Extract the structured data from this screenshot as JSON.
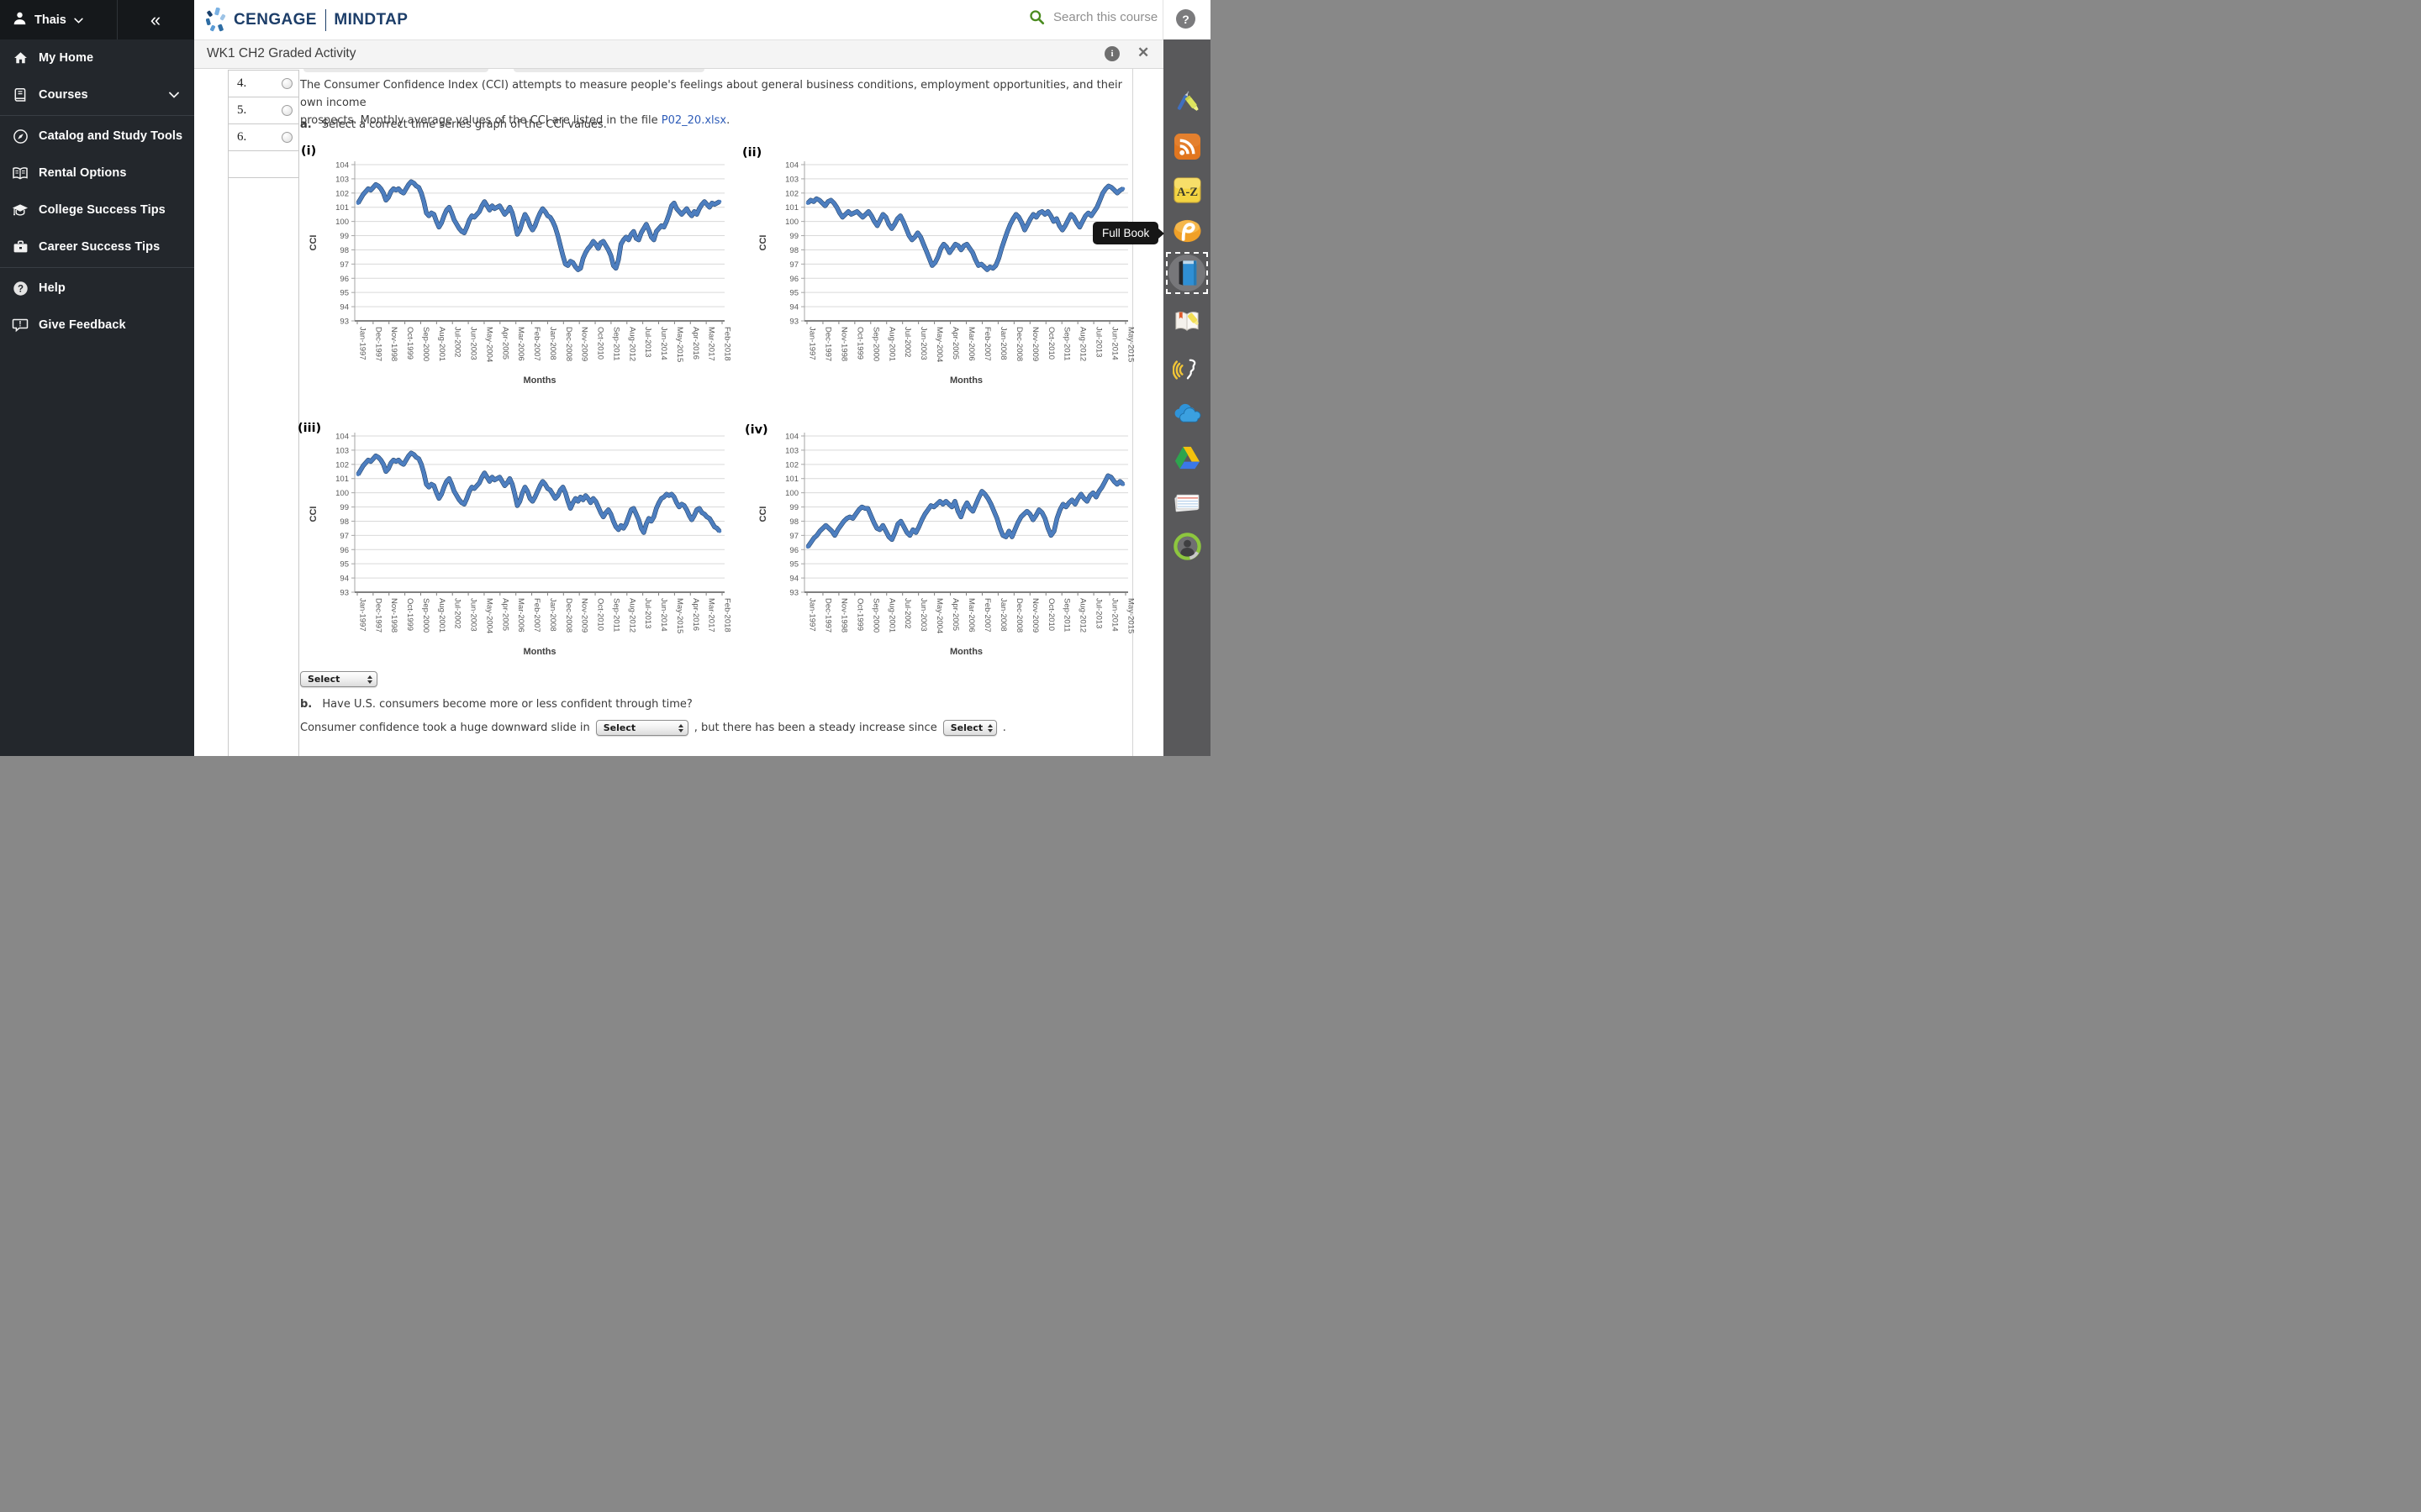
{
  "colors": {
    "brand_navy": "#1d3e69",
    "search_green": "#4a8b1f",
    "link_blue": "#2e5cb8",
    "series": "#4d7ebf",
    "sidebar_bg": "#23272c",
    "rail_bg": "#59595b",
    "grid": "#d9d9d9"
  },
  "sidebar": {
    "user": "Thais",
    "collapse_glyph": "«",
    "groups": [
      [
        {
          "icon": "home-icon",
          "label": "My Home"
        },
        {
          "icon": "courses-icon",
          "label": "Courses",
          "chevron": true
        }
      ],
      [
        {
          "icon": "catalog-icon",
          "label": "Catalog and Study Tools"
        },
        {
          "icon": "rental-icon",
          "label": "Rental Options"
        },
        {
          "icon": "college-icon",
          "label": "College Success Tips"
        },
        {
          "icon": "career-icon",
          "label": "Career Success Tips"
        }
      ],
      [
        {
          "icon": "help-icon",
          "label": "Help"
        },
        {
          "icon": "feedback-icon",
          "label": "Give Feedback"
        }
      ]
    ]
  },
  "header": {
    "brand": "CENGAGE",
    "product": "MINDTAP",
    "search_placeholder": "Search this course",
    "help_glyph": "?"
  },
  "activity": {
    "title": "WK1 CH2 Graded Activity",
    "info_glyph": "i",
    "close_glyph": "✕"
  },
  "question_list": {
    "items": [
      "4.",
      "5.",
      "6."
    ]
  },
  "question": {
    "intro_line1": "The Consumer Confidence Index (CCI) attempts to measure people's feelings about general business conditions, employment opportunities, and their own income",
    "intro_line2_pre": "prospects. Monthly average values of the CCI are listed in the file ",
    "intro_link": "P02_20.xlsx",
    "intro_post": ".",
    "part_a_label": "a.",
    "part_a_text": "Select a correct time series graph of the CCI values.",
    "part_b_label": "b.",
    "part_b_text": "Have U.S. consumers become more or less confident through time?",
    "fill_pre": "Consumer confidence took a huge downward slide in",
    "fill_mid": ", but there has been a steady increase since",
    "fill_end": ".",
    "selects": {
      "a": "Select",
      "b1": "Select",
      "b2": "Select"
    }
  },
  "tooltip": {
    "text": "Full Book"
  },
  "right_rail": {
    "icons": [
      "pen-highlighter-icon",
      "rss-icon",
      "az-icon",
      "pronunciation-icon",
      "full-book-icon",
      "book-highlighter-icon",
      "speech-icon",
      "cloud-icon",
      "google-drive-icon",
      "flashcards-icon",
      "profile-icon"
    ],
    "highlighted": "full-book-icon"
  },
  "chart_data": [
    {
      "id": "i",
      "label": "(i)",
      "type": "line",
      "ylabel": "CCI",
      "xlabel": "Months",
      "ylim": [
        93,
        104
      ],
      "grid": true,
      "legend": "none",
      "x_tick_labels": [
        "Jan-1997",
        "Dec-1997",
        "Nov-1998",
        "Oct-1999",
        "Sep-2000",
        "Aug-2001",
        "Jul-2002",
        "Jun-2003",
        "May-2004",
        "Apr-2005",
        "Mar-2006",
        "Feb-2007",
        "Jan-2008",
        "Dec-2008",
        "Nov-2009",
        "Oct-2010",
        "Sep-2011",
        "Aug-2012",
        "Jul-2013",
        "Jun-2014",
        "May-2015",
        "Apr-2016",
        "Mar-2017",
        "Feb-2018"
      ],
      "values": [
        101.3,
        101.6,
        101.9,
        102.1,
        102.3,
        102.2,
        102.4,
        102.6,
        102.5,
        102.3,
        102.0,
        101.5,
        101.7,
        102.1,
        102.3,
        102.2,
        102.3,
        102.1,
        102.0,
        102.3,
        102.6,
        102.8,
        102.7,
        102.5,
        102.4,
        102.0,
        101.4,
        100.6,
        100.4,
        100.6,
        100.5,
        100.0,
        99.6,
        99.9,
        100.4,
        100.8,
        101.0,
        100.6,
        100.1,
        99.8,
        99.5,
        99.3,
        99.2,
        99.6,
        100.1,
        100.4,
        100.3,
        100.5,
        100.7,
        101.1,
        101.4,
        101.1,
        100.8,
        101.1,
        100.9,
        101.0,
        101.1,
        100.8,
        100.5,
        100.7,
        101.0,
        100.6,
        99.9,
        99.1,
        99.4,
        100.0,
        100.5,
        100.2,
        99.7,
        99.4,
        99.7,
        100.2,
        100.6,
        100.9,
        100.7,
        100.4,
        100.3,
        100.0,
        99.6,
        99.0,
        98.3,
        97.6,
        97.0,
        96.9,
        97.2,
        97.1,
        96.8,
        96.6,
        96.7,
        97.4,
        97.8,
        98.1,
        98.3,
        98.6,
        98.4,
        98.1,
        98.5,
        98.6,
        98.3,
        98.0,
        97.6,
        96.9,
        96.7,
        97.3,
        98.4,
        98.7,
        98.9,
        98.7,
        99.1,
        99.3,
        98.8,
        98.7,
        99.2,
        99.5,
        99.8,
        99.4,
        98.9,
        98.7,
        99.3,
        99.5,
        99.7,
        99.6,
        100.0,
        100.5,
        101.1,
        101.3,
        100.9,
        100.7,
        100.5,
        100.7,
        100.9,
        100.6,
        100.4,
        100.7,
        100.5,
        100.9,
        101.2,
        101.4,
        101.2,
        101.0,
        101.3,
        101.2,
        101.3,
        101.4
      ]
    },
    {
      "id": "ii",
      "label": "(ii)",
      "type": "line",
      "ylabel": "CCI",
      "xlabel": "Months",
      "ylim": [
        93,
        104
      ],
      "grid": true,
      "legend": "none",
      "x_tick_labels": [
        "Jan-1997",
        "Dec-1997",
        "Nov-1998",
        "Oct-1999",
        "Sep-2000",
        "Aug-2001",
        "Jul-2002",
        "Jun-2003",
        "May-2004",
        "Apr-2005",
        "Mar-2006",
        "Feb-2007",
        "Jan-2008",
        "Dec-2008",
        "Nov-2009",
        "Oct-2010",
        "Sep-2011",
        "Aug-2012",
        "Jul-2013",
        "Jun-2014",
        "May-2015"
      ],
      "values": [
        101.3,
        101.5,
        101.4,
        101.6,
        101.5,
        101.3,
        101.1,
        101.4,
        101.5,
        101.3,
        101.0,
        100.6,
        100.3,
        100.5,
        100.7,
        100.5,
        100.6,
        100.7,
        100.5,
        100.3,
        100.5,
        100.7,
        100.4,
        100.0,
        99.7,
        100.1,
        100.5,
        100.3,
        99.8,
        99.5,
        99.8,
        100.2,
        100.4,
        100.0,
        99.5,
        99.0,
        98.7,
        98.9,
        99.2,
        98.9,
        98.4,
        97.9,
        97.4,
        96.9,
        97.1,
        97.5,
        98.1,
        98.4,
        98.2,
        97.8,
        98.1,
        98.4,
        98.3,
        98.0,
        98.3,
        98.4,
        98.1,
        97.8,
        97.3,
        96.9,
        97.0,
        96.8,
        96.6,
        96.8,
        96.7,
        96.9,
        97.4,
        98.1,
        98.7,
        99.3,
        99.8,
        100.2,
        100.5,
        100.3,
        99.9,
        99.4,
        99.8,
        100.2,
        100.5,
        100.3,
        100.6,
        100.7,
        100.5,
        100.7,
        100.4,
        100.0,
        100.2,
        99.7,
        99.4,
        99.7,
        100.1,
        100.5,
        100.3,
        99.9,
        99.6,
        100.0,
        100.4,
        100.6,
        100.4,
        100.7,
        101.0,
        101.5,
        102.0,
        102.3,
        102.5,
        102.4,
        102.2,
        102.0,
        102.2,
        102.3
      ]
    },
    {
      "id": "iii",
      "label": "(iii)",
      "type": "line",
      "ylabel": "CCI",
      "xlabel": "Months",
      "ylim": [
        93,
        104
      ],
      "grid": true,
      "legend": "none",
      "x_tick_labels": [
        "Jan-1997",
        "Dec-1997",
        "Nov-1998",
        "Oct-1999",
        "Sep-2000",
        "Aug-2001",
        "Jul-2002",
        "Jun-2003",
        "May-2004",
        "Apr-2005",
        "Mar-2006",
        "Feb-2007",
        "Jan-2008",
        "Dec-2008",
        "Nov-2009",
        "Oct-2010",
        "Sep-2011",
        "Aug-2012",
        "Jul-2013",
        "Jun-2014",
        "May-2015",
        "Apr-2016",
        "Mar-2017",
        "Feb-2018"
      ],
      "values": [
        101.3,
        101.6,
        101.9,
        102.1,
        102.3,
        102.2,
        102.4,
        102.6,
        102.5,
        102.3,
        102.0,
        101.5,
        101.7,
        102.1,
        102.3,
        102.2,
        102.3,
        102.1,
        102.0,
        102.3,
        102.6,
        102.8,
        102.7,
        102.5,
        102.4,
        102.0,
        101.4,
        100.6,
        100.4,
        100.6,
        100.5,
        100.0,
        99.6,
        99.9,
        100.4,
        100.8,
        101.0,
        100.6,
        100.1,
        99.8,
        99.5,
        99.3,
        99.2,
        99.6,
        100.1,
        100.4,
        100.3,
        100.5,
        100.7,
        101.1,
        101.4,
        101.1,
        100.8,
        101.1,
        100.9,
        101.0,
        101.1,
        100.8,
        100.5,
        100.7,
        101.0,
        100.6,
        99.9,
        99.1,
        99.4,
        100.0,
        100.4,
        100.1,
        99.6,
        99.4,
        99.7,
        100.1,
        100.5,
        100.8,
        100.6,
        100.3,
        100.2,
        99.9,
        99.6,
        99.8,
        100.2,
        100.4,
        100.0,
        99.4,
        98.9,
        99.3,
        99.6,
        99.4,
        99.7,
        99.5,
        99.8,
        99.6,
        99.3,
        99.6,
        99.4,
        99.0,
        98.6,
        98.3,
        98.6,
        98.8,
        98.5,
        98.0,
        97.6,
        97.4,
        97.7,
        97.5,
        97.8,
        98.3,
        98.8,
        98.9,
        98.5,
        98.1,
        97.5,
        97.2,
        97.8,
        98.2,
        98.0,
        98.3,
        98.9,
        99.3,
        99.6,
        99.7,
        99.9,
        99.8,
        99.9,
        99.7,
        99.3,
        99.0,
        99.2,
        99.1,
        98.8,
        98.4,
        98.1,
        98.4,
        98.8,
        98.9,
        98.6,
        98.5,
        98.3,
        98.2,
        97.9,
        97.6,
        97.5,
        97.3
      ]
    },
    {
      "id": "iv",
      "label": "(iv)",
      "type": "line",
      "ylabel": "CCI",
      "xlabel": "Months",
      "ylim": [
        93,
        104
      ],
      "grid": true,
      "legend": "none",
      "x_tick_labels": [
        "Jan-1997",
        "Dec-1997",
        "Nov-1998",
        "Oct-1999",
        "Sep-2000",
        "Aug-2001",
        "Jul-2002",
        "Jun-2003",
        "May-2004",
        "Apr-2005",
        "Mar-2006",
        "Feb-2007",
        "Jan-2008",
        "Dec-2008",
        "Nov-2009",
        "Oct-2010",
        "Sep-2011",
        "Aug-2012",
        "Jul-2013",
        "Jun-2014",
        "May-2015"
      ],
      "values": [
        96.2,
        96.5,
        96.8,
        97.0,
        97.3,
        97.5,
        97.7,
        97.5,
        97.3,
        97.0,
        97.4,
        97.7,
        98.0,
        98.2,
        98.3,
        98.2,
        98.5,
        98.8,
        99.0,
        98.9,
        98.9,
        98.4,
        97.9,
        97.5,
        97.4,
        97.7,
        97.3,
        96.9,
        96.7,
        97.2,
        97.8,
        98.0,
        97.6,
        97.2,
        97.0,
        97.4,
        97.2,
        97.6,
        98.1,
        98.5,
        98.8,
        99.1,
        99.0,
        99.2,
        99.4,
        99.2,
        99.4,
        99.2,
        99.0,
        99.4,
        98.7,
        98.3,
        98.9,
        99.3,
        98.9,
        98.7,
        99.2,
        99.7,
        100.1,
        99.9,
        99.6,
        99.2,
        98.7,
        98.2,
        97.5,
        97.0,
        96.9,
        97.3,
        96.9,
        97.4,
        97.9,
        98.3,
        98.5,
        98.7,
        98.5,
        98.1,
        98.4,
        98.8,
        98.6,
        98.2,
        97.5,
        97.0,
        97.3,
        98.2,
        98.8,
        99.2,
        99.0,
        99.3,
        99.5,
        99.2,
        99.6,
        99.9,
        99.6,
        99.4,
        99.8,
        100.0,
        99.7,
        100.1,
        100.4,
        100.8,
        101.2,
        101.1,
        100.8,
        100.6,
        100.8,
        100.6
      ]
    }
  ]
}
